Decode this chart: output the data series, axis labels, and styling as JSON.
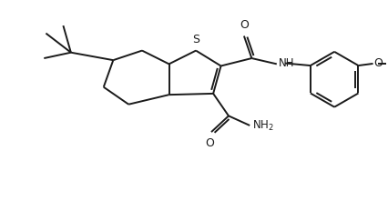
{
  "bg_color": "#ffffff",
  "line_color": "#1a1a1a",
  "line_width": 1.4,
  "font_size": 8.5,
  "figsize": [
    4.26,
    2.21
  ],
  "dpi": 100,
  "xlim": [
    0,
    10
  ],
  "ylim": [
    0,
    5.2
  ]
}
